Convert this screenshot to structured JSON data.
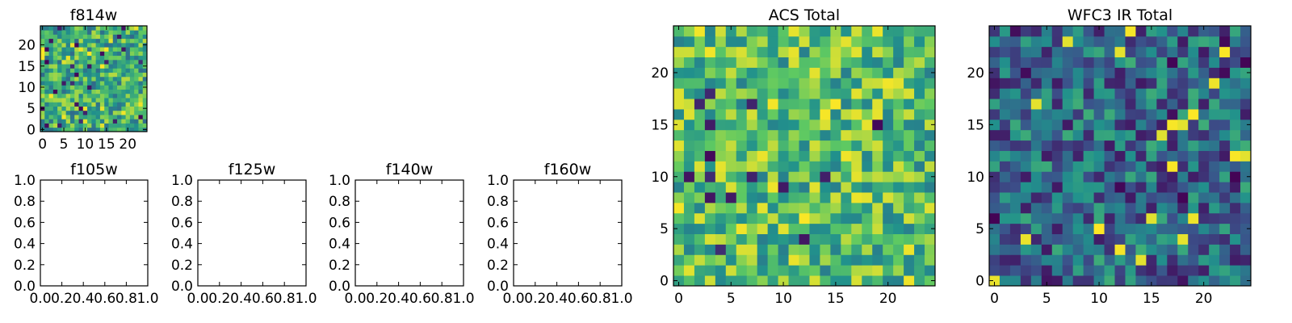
{
  "chart_data": [
    {
      "type": "heatmap",
      "title": "f814w",
      "xticks": [
        "0",
        "5",
        "10",
        "15",
        "20"
      ],
      "yticks": [
        "0",
        "5",
        "10",
        "15",
        "20"
      ],
      "xlim": [
        -0.5,
        24.5
      ],
      "ylim": [
        -0.5,
        24.5
      ],
      "grid": false,
      "colormap": "viridis",
      "bias": 0.62,
      "seed": 11
    },
    {
      "type": "heatmap",
      "title": "f105w",
      "xticks": [
        "0.0",
        "0.2",
        "0.4",
        "0.6",
        "0.8",
        "1.0"
      ],
      "yticks": [
        "0.0",
        "0.2",
        "0.4",
        "0.6",
        "0.8",
        "1.0"
      ],
      "xlim": [
        0,
        1
      ],
      "ylim": [
        0,
        1
      ],
      "grid": false,
      "empty": true
    },
    {
      "type": "heatmap",
      "title": "f125w",
      "xticks": [
        "0.0",
        "0.2",
        "0.4",
        "0.6",
        "0.8",
        "1.0"
      ],
      "yticks": [
        "0.0",
        "0.2",
        "0.4",
        "0.6",
        "0.8",
        "1.0"
      ],
      "xlim": [
        0,
        1
      ],
      "ylim": [
        0,
        1
      ],
      "grid": false,
      "empty": true
    },
    {
      "type": "heatmap",
      "title": "f140w",
      "xticks": [
        "0.0",
        "0.2",
        "0.4",
        "0.6",
        "0.8",
        "1.0"
      ],
      "yticks": [
        "0.0",
        "0.2",
        "0.4",
        "0.6",
        "0.8",
        "1.0"
      ],
      "xlim": [
        0,
        1
      ],
      "ylim": [
        0,
        1
      ],
      "grid": false,
      "empty": true
    },
    {
      "type": "heatmap",
      "title": "f160w",
      "xticks": [
        "0.0",
        "0.2",
        "0.4",
        "0.6",
        "0.8",
        "1.0"
      ],
      "yticks": [
        "0.0",
        "0.2",
        "0.4",
        "0.6",
        "0.8",
        "1.0"
      ],
      "xlim": [
        0,
        1
      ],
      "ylim": [
        0,
        1
      ],
      "grid": false,
      "empty": true
    },
    {
      "type": "heatmap",
      "title": "ACS Total",
      "xticks": [
        "0",
        "5",
        "10",
        "15",
        "20"
      ],
      "yticks": [
        "0",
        "5",
        "10",
        "15",
        "20"
      ],
      "xlim": [
        -0.5,
        24.5
      ],
      "ylim": [
        -0.5,
        24.5
      ],
      "grid": false,
      "colormap": "viridis",
      "bias": 0.7,
      "seed": 23
    },
    {
      "type": "heatmap",
      "title": "WFC3 IR Total",
      "xticks": [
        "0",
        "5",
        "10",
        "15",
        "20"
      ],
      "yticks": [
        "0",
        "5",
        "10",
        "15",
        "20"
      ],
      "xlim": [
        -0.5,
        24.5
      ],
      "ylim": [
        -0.5,
        24.5
      ],
      "grid": false,
      "colormap": "viridis",
      "bias": 0.35,
      "seed": 47
    }
  ],
  "colors": {
    "viridis_stops": [
      "#440154",
      "#3b528b",
      "#21918c",
      "#5ec962",
      "#fde725"
    ],
    "axes_frame": "#000000",
    "background": "#ffffff"
  }
}
